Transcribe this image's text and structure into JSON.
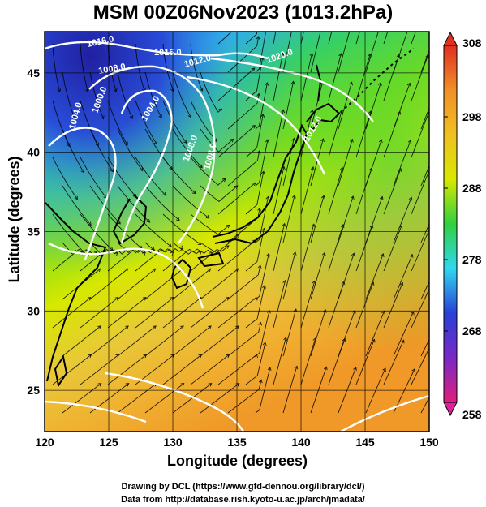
{
  "title": "MSM 00Z06Nov2023 (1013.2hPa)",
  "axes": {
    "xlabel": "Longitude (degrees)",
    "ylabel": "Latitude  (degrees)",
    "x_ticks": [
      "120",
      "125",
      "130",
      "135",
      "140",
      "145",
      "150"
    ],
    "y_ticks": [
      "25",
      "30",
      "35",
      "40",
      "45"
    ],
    "x_range": [
      120,
      150
    ],
    "y_range": [
      22.4,
      47.6
    ]
  },
  "colorbar": {
    "ticks": [
      "308",
      "298",
      "288",
      "278",
      "268",
      "258"
    ],
    "range": [
      258,
      308
    ],
    "stops": [
      "#e0207c",
      "#7a28c8",
      "#2840d8",
      "#30d8f0",
      "#30d040",
      "#d8e800",
      "#f0c020",
      "#f09028",
      "#e03020"
    ]
  },
  "isobars": {
    "labels": [
      "1016.0",
      "1008.0",
      "1012.0",
      "1020.0",
      "1016.0",
      "1004.0",
      "1000.0",
      "1004.0",
      "1008.0",
      "1012.0",
      "1008.0"
    ]
  },
  "credits": {
    "line1": "Drawing by DCL (https://www.gfd-dennou.org/library/dcl/)",
    "line2": "Data from http://database.rish.kyoto-u.ac.jp/arch/jmadata/"
  },
  "colors": {
    "land": "#000000",
    "isobar": "#ffffff",
    "streamline": "#000000",
    "frame": "#000000"
  }
}
